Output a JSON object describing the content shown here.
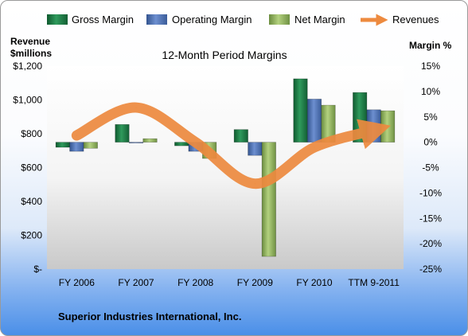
{
  "chart_data": {
    "type": "bar",
    "title": "12-Month Period Margins",
    "company": "Superior Industries International, Inc.",
    "categories": [
      "FY 2006",
      "FY 2007",
      "FY 2008",
      "FY 2009",
      "FY 2010",
      "TTM 9-2011"
    ],
    "y_left": {
      "title_lines": [
        "Revenue",
        "$millions"
      ],
      "range": [
        0,
        1200
      ],
      "ticks": [
        0,
        200,
        400,
        600,
        800,
        1000,
        1200
      ],
      "tick_labels": [
        "$-",
        "$200",
        "$400",
        "$600",
        "$800",
        "$1,000",
        "$1,200"
      ]
    },
    "y_right": {
      "title": "Margin %",
      "range": [
        -25,
        15
      ],
      "ticks": [
        15,
        10,
        5,
        0,
        -5,
        -10,
        -15,
        -20,
        -25
      ],
      "tick_labels": [
        "15%",
        "10%",
        "5%",
        "0%",
        "-5%",
        "-10%",
        "-15%",
        "-20%",
        "-25%"
      ]
    },
    "series": [
      {
        "name": "Gross Margin",
        "kind": "bar",
        "axis": "right",
        "color": "#1f7a45",
        "values": [
          -1,
          3.5,
          -0.7,
          2.5,
          12.5,
          9.8
        ]
      },
      {
        "name": "Operating Margin",
        "kind": "bar",
        "axis": "right",
        "color": "#4a6fb5",
        "values": [
          -1.8,
          0,
          -1.8,
          -2.6,
          8.5,
          6.4
        ]
      },
      {
        "name": "Net Margin",
        "kind": "bar",
        "axis": "right",
        "color": "#8db05a",
        "values": [
          -1.2,
          0.7,
          -3.2,
          -22.5,
          7.3,
          6.2
        ]
      },
      {
        "name": "Revenues",
        "kind": "line",
        "axis": "left",
        "color": "#ed8a3f",
        "values": [
          790,
          955,
          750,
          505,
          720,
          820
        ]
      }
    ],
    "legend_position": "top",
    "grid": false
  }
}
